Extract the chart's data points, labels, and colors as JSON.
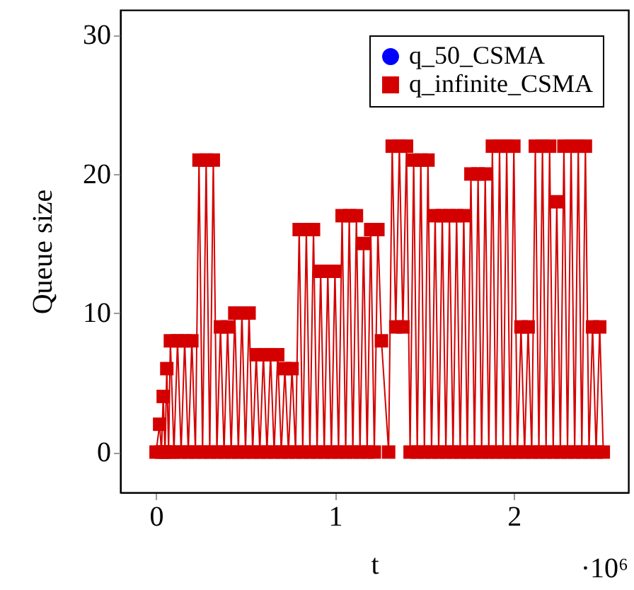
{
  "chart_data": {
    "type": "line",
    "xlabel": "t",
    "ylabel": "Queue size",
    "xlim": [
      -0.2,
      2.64
    ],
    "ylim": [
      -2.9,
      31.8
    ],
    "xticks": [
      0,
      1,
      2
    ],
    "yticks": [
      0,
      10,
      20,
      30
    ],
    "annotations": [
      "·10⁶"
    ],
    "legend": "top right",
    "grid": false,
    "line_style": "solid",
    "series": [
      {
        "name": "q_50_CSMA",
        "color": "#0000ff",
        "marker": "circle"
      },
      {
        "name": "q_infinite_CSMA",
        "color": "#d40000",
        "marker": "square",
        "x": [
          0,
          0.02,
          0.03,
          0.04,
          0.05,
          0.06,
          0.07,
          0.08,
          0.1,
          0.12,
          0.14,
          0.16,
          0.18,
          0.2,
          0.22,
          0.24,
          0.26,
          0.28,
          0.3,
          0.32,
          0.34,
          0.36,
          0.38,
          0.4,
          0.42,
          0.44,
          0.46,
          0.48,
          0.5,
          0.52,
          0.54,
          0.56,
          0.58,
          0.6,
          0.62,
          0.64,
          0.66,
          0.68,
          0.7,
          0.72,
          0.74,
          0.76,
          0.78,
          0.8,
          0.82,
          0.84,
          0.86,
          0.88,
          0.9,
          0.92,
          0.94,
          0.96,
          0.98,
          1.0,
          1.02,
          1.04,
          1.06,
          1.08,
          1.1,
          1.12,
          1.14,
          1.16,
          1.18,
          1.2,
          1.22,
          1.24,
          1.26,
          1.3,
          1.32,
          1.34,
          1.36,
          1.38,
          1.4,
          1.42,
          1.44,
          1.46,
          1.48,
          1.5,
          1.52,
          1.54,
          1.56,
          1.58,
          1.6,
          1.62,
          1.64,
          1.66,
          1.68,
          1.7,
          1.72,
          1.74,
          1.76,
          1.78,
          1.8,
          1.82,
          1.84,
          1.86,
          1.88,
          1.9,
          1.92,
          1.94,
          1.96,
          1.98,
          2.0,
          2.02,
          2.04,
          2.06,
          2.08,
          2.1,
          2.12,
          2.14,
          2.16,
          2.18,
          2.2,
          2.22,
          2.24,
          2.26,
          2.28,
          2.3,
          2.32,
          2.34,
          2.36,
          2.38,
          2.4,
          2.42,
          2.44,
          2.46,
          2.48,
          2.5
        ],
        "values": [
          0,
          2,
          0,
          4,
          0,
          6,
          0,
          8,
          0,
          8,
          0,
          8,
          0,
          8,
          0,
          21,
          0,
          21,
          0,
          21,
          0,
          9,
          0,
          9,
          0,
          10,
          0,
          10,
          0,
          10,
          0,
          7,
          0,
          7,
          0,
          7,
          0,
          7,
          0,
          6,
          0,
          6,
          0,
          16,
          0,
          16,
          0,
          16,
          0,
          13,
          0,
          13,
          0,
          13,
          0,
          17,
          0,
          17,
          0,
          17,
          0,
          15,
          0,
          16,
          0,
          16,
          8,
          0,
          22,
          9,
          22,
          9,
          22,
          0,
          21,
          0,
          21,
          0,
          21,
          0,
          17,
          0,
          17,
          0,
          17,
          0,
          17,
          0,
          17,
          0,
          20,
          0,
          20,
          0,
          20,
          0,
          22,
          0,
          22,
          0,
          22,
          0,
          22,
          0,
          9,
          0,
          9,
          0,
          22,
          0,
          22,
          0,
          22,
          0,
          18,
          0,
          22,
          0,
          22,
          0,
          22,
          0,
          22,
          0,
          9,
          0,
          9,
          0
        ]
      }
    ]
  }
}
